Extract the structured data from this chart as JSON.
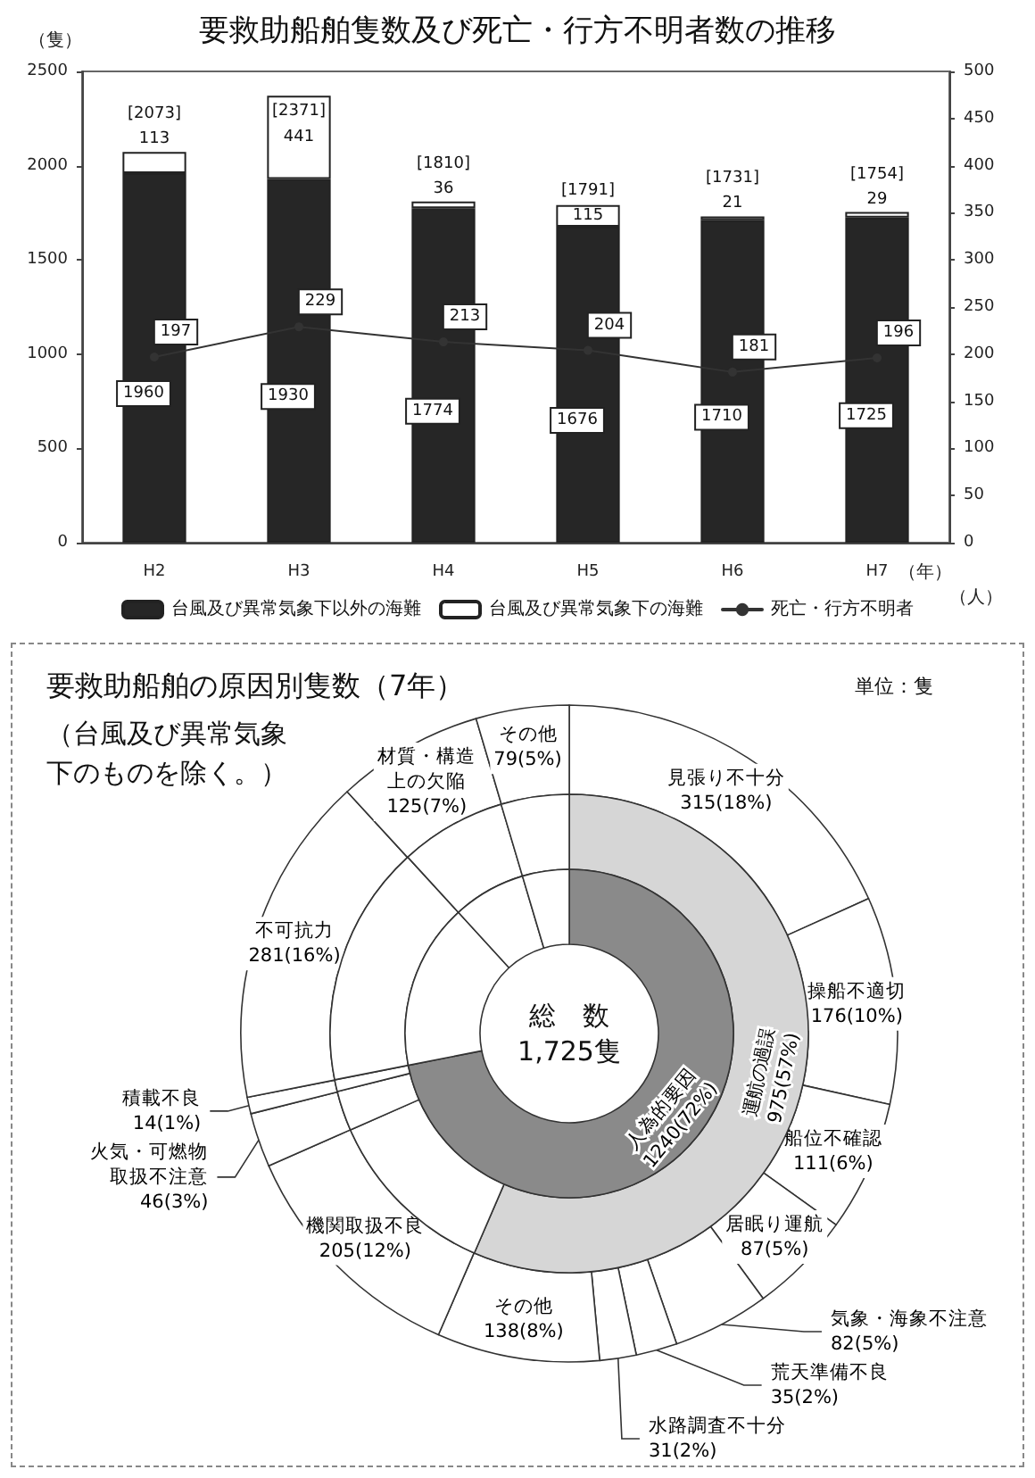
{
  "chart_data": [
    {
      "type": "bar",
      "title": "要救助船舶隻数及び死亡・行方不明者数の推移",
      "ylabel": "（隻）",
      "y2label": "（人）",
      "xlabel": "（年）",
      "categories": [
        "H2",
        "H3",
        "H4",
        "H5",
        "H6",
        "H7"
      ],
      "stacked": true,
      "series": [
        {
          "name": "台風及び異常気象下以外の海難",
          "color": "#262626",
          "values": [
            1960,
            1930,
            1774,
            1676,
            1710,
            1725
          ]
        },
        {
          "name": "台風及び異常気象下の海難",
          "color": "#ffffff",
          "values": [
            113,
            441,
            36,
            115,
            21,
            29
          ]
        },
        {
          "name": "死亡・行方不明者",
          "type": "line",
          "axis": "y2",
          "color": "#333333",
          "values": [
            197,
            229,
            213,
            204,
            181,
            196
          ]
        }
      ],
      "totals": [
        "[2073]",
        "[2371]",
        "[1810]",
        "[1791]",
        "[1731]",
        "[1754]"
      ],
      "ylim": [
        0,
        2500
      ],
      "yticks": [
        0,
        500,
        1000,
        1500,
        2000,
        2500
      ],
      "y2lim": [
        0,
        500
      ],
      "y2ticks": [
        0,
        50,
        100,
        150,
        200,
        250,
        300,
        350,
        400,
        450,
        500
      ],
      "data_labels": true,
      "marker": "circle",
      "legend": "bottom",
      "grid": false
    },
    {
      "type": "donut",
      "title": "要救助船舶の原因別隻数（7年）",
      "subtitle": "（台風及び異常気象下のものを除く。）",
      "annotations": [
        "単位：隻"
      ],
      "categories": [
        "見張り不十分",
        "操船不適切",
        "船位不確認",
        "居眠り運航",
        "気象・海象不注意",
        "荒天準備不良",
        "水路調査不十分",
        "その他",
        "機関取扱不良",
        "火気・可燃物取扱不注意",
        "積載不良",
        "不可抗力",
        "材質・構造上の欠陥",
        "その他"
      ],
      "values": [
        315,
        176,
        111,
        87,
        82,
        35,
        31,
        138,
        205,
        46,
        14,
        281,
        125,
        79
      ],
      "value_labels": [
        "315(18%)",
        "176(10%)",
        "111(6%)",
        "87(5%)",
        "82(5%)",
        "35(2%)",
        "31(2%)",
        "138(8%)",
        "205(12%)",
        "46(3%)",
        "14(1%)",
        "281(16%)",
        "125(7%)",
        "79(5%)"
      ],
      "colors": [
        "#ffffff",
        "#ffffff",
        "#ffffff",
        "#ffffff",
        "#ffffff",
        "#ffffff",
        "#ffffff",
        "#ffffff",
        "#ffffff",
        "#ffffff",
        "#ffffff",
        "#ffffff",
        "#ffffff",
        "#ffffff"
      ]
    },
    {
      "type": "donut",
      "categories": [
        "運航の過誤",
        null,
        null,
        null,
        null,
        null,
        null
      ],
      "values": [
        56.5,
        11.9,
        2.7,
        0.8,
        16.3,
        7.2,
        4.6
      ],
      "value_labels": [
        "975(57%)",
        null,
        null,
        null,
        null,
        null,
        null
      ],
      "colors": [
        "#d6d6d6",
        "#ffffff",
        "#ffffff",
        "#ffffff",
        "#ffffff",
        "#ffffff",
        "#ffffff"
      ]
    },
    {
      "type": "donut",
      "annotations": [
        "総　数",
        "1,725隻"
      ],
      "categories": [
        "人為的要因",
        null,
        null,
        null
      ],
      "values": [
        71.9,
        16.3,
        7.2,
        4.6
      ],
      "value_labels": [
        "1240(72%)",
        null,
        null,
        null
      ],
      "colors": [
        "#8a8a8a",
        "#ffffff",
        "#ffffff",
        "#ffffff"
      ]
    }
  ]
}
